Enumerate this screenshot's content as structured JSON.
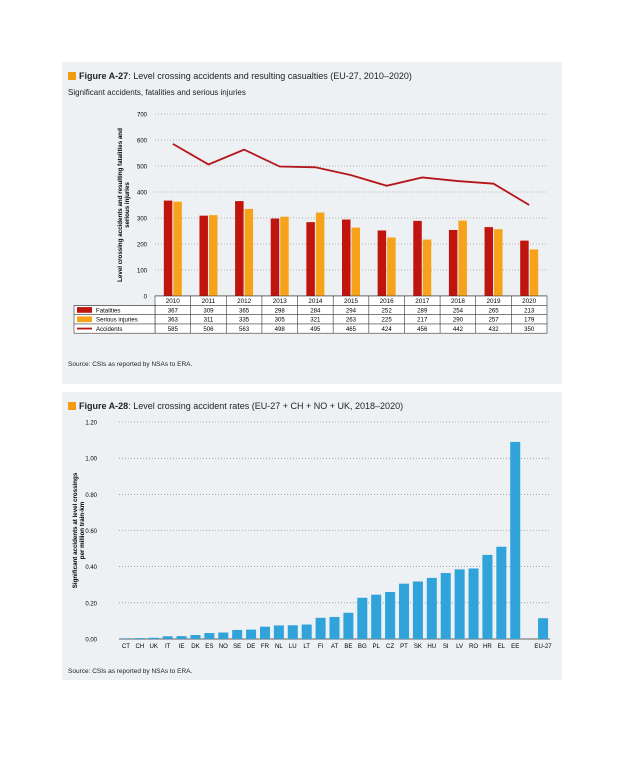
{
  "chart_data": [
    {
      "type": "bar",
      "figure_label": "Figure A-27",
      "title": ": Level crossing accidents and resulting casualties (EU-27, 2010–2020)",
      "subtitle": "Significant accidents, fatalities and serious injuries",
      "ylabel": "Level crossing accidents and resulting fatalities and serious injuries",
      "ylim": [
        0,
        700
      ],
      "yticks": [
        0,
        100,
        200,
        300,
        400,
        500,
        600,
        700
      ],
      "grid": true,
      "categories": [
        "2010",
        "2011",
        "2012",
        "2013",
        "2014",
        "2015",
        "2016",
        "2017",
        "2018",
        "2019",
        "2020"
      ],
      "series": [
        {
          "name": "Fatalities",
          "type": "bar",
          "color": "#c0140f",
          "values": [
            367,
            309,
            365,
            298,
            284,
            294,
            252,
            289,
            254,
            265,
            213
          ],
          "labels": [
            "367",
            "309",
            "365",
            "298",
            "284",
            "294",
            "252",
            "289",
            "254",
            "265",
            "213"
          ]
        },
        {
          "name": "Serious injuries",
          "type": "bar",
          "color": "#f7a21b",
          "values": [
            363,
            311,
            335,
            305,
            321,
            263,
            225,
            217,
            290,
            257,
            179
          ],
          "labels": [
            "363",
            "311",
            "335",
            "305",
            "321",
            "263",
            "225",
            "217",
            "290",
            "257",
            "179"
          ]
        },
        {
          "name": "Accidents",
          "type": "line",
          "color": "#b5161a",
          "values": [
            585,
            506,
            563,
            498,
            495,
            465,
            424,
            456,
            442,
            432,
            350
          ],
          "labels": [
            "585",
            "506",
            "563",
            "498",
            "495",
            "465",
            "424",
            "456",
            "442",
            "432",
            "350"
          ]
        }
      ],
      "source": "Source: CSIs as reported by NSAs to ERA."
    },
    {
      "type": "bar",
      "figure_label": "Figure A-28",
      "title": ": Level crossing accident rates (EU-27 + CH + NO + UK, 2018–2020)",
      "ylabel": "Significant accidents at level crossings per million train-km",
      "ylim": [
        0,
        1.2
      ],
      "yticks": [
        "0.00",
        "0.20",
        "0.40",
        "0.60",
        "0.80",
        "1.00",
        "1.20"
      ],
      "grid": true,
      "color": "#2fa3da",
      "categories": [
        "CT",
        "CH",
        "UK",
        "IT",
        "IE",
        "DK",
        "ES",
        "NO",
        "SE",
        "DE",
        "FR",
        "NL",
        "LU",
        "LT",
        "FI",
        "AT",
        "BE",
        "BG",
        "PL",
        "CZ",
        "PT",
        "SK",
        "HU",
        "SI",
        "LV",
        "RO",
        "HR",
        "EL",
        "EE",
        "",
        "EU-27"
      ],
      "values": [
        0.004,
        0.005,
        0.007,
        0.015,
        0.016,
        0.022,
        0.033,
        0.036,
        0.05,
        0.052,
        0.068,
        0.075,
        0.076,
        0.08,
        0.117,
        0.122,
        0.145,
        0.228,
        0.245,
        0.26,
        0.306,
        0.318,
        0.338,
        0.365,
        0.385,
        0.39,
        0.465,
        0.51,
        1.09,
        null,
        0.115
      ],
      "source": "Source: CSIs as reported by NSAs to ERA."
    }
  ]
}
